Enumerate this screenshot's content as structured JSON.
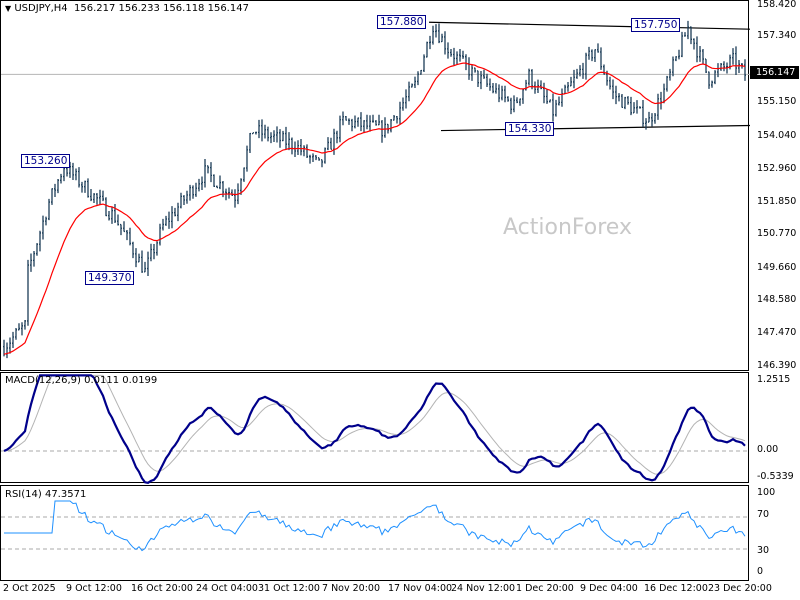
{
  "header": {
    "symbol": "USDJPY,H4",
    "ohlc": "156.217 156.233 156.118 156.147"
  },
  "watermark": "ActionForex",
  "current_price": "156.147",
  "price_axis": [
    "158.420",
    "157.340",
    "156.147",
    "155.150",
    "154.040",
    "152.960",
    "151.850",
    "150.770",
    "149.660",
    "148.580",
    "147.470",
    "146.390"
  ],
  "callouts": {
    "high1": "157.880",
    "high2": "157.750",
    "low1": "154.330",
    "left_high": "153.260",
    "left_low": "149.370"
  },
  "macd": {
    "label": "MACD(12,26,9) 0.0111 0.0199",
    "axis": [
      "1.2515",
      "0.00",
      "-0.5339"
    ]
  },
  "rsi": {
    "label": "RSI(14) 47.3571",
    "axis": [
      "100",
      "70",
      "30",
      "0"
    ]
  },
  "time_axis": [
    "2 Oct 2025",
    "9 Oct 12:00",
    "16 Oct 20:00",
    "24 Oct 04:00",
    "31 Oct 12:00",
    "7 Nov 20:00",
    "17 Nov 04:00",
    "24 Nov 12:00",
    "1 Dec 20:00",
    "9 Dec 04:00",
    "16 Dec 12:00",
    "23 Dec 20:00"
  ],
  "colors": {
    "bars": "#1c3d58",
    "ma": "#ff0000",
    "macd": "#00008b",
    "signal": "#b4b4b4",
    "rsi": "#1e90ff",
    "callout": "#00008b"
  },
  "chart_data": {
    "type": "ohlc",
    "title": "USDJPY,H4",
    "ylim": [
      146.39,
      158.42
    ],
    "path_anchors": [
      [
        0,
        147.1
      ],
      [
        7,
        147.8
      ],
      [
        8,
        149.6
      ],
      [
        15,
        151.9
      ],
      [
        20,
        153.1
      ],
      [
        27,
        152.4
      ],
      [
        37,
        151.4
      ],
      [
        47,
        149.6
      ],
      [
        53,
        151.1
      ],
      [
        67,
        152.9
      ],
      [
        77,
        152.1
      ],
      [
        83,
        154.3
      ],
      [
        97,
        153.8
      ],
      [
        105,
        153.1
      ],
      [
        113,
        154.6
      ],
      [
        127,
        154.3
      ],
      [
        137,
        155.8
      ],
      [
        143,
        157.8
      ],
      [
        148,
        157.0
      ],
      [
        157,
        156.1
      ],
      [
        170,
        155.1
      ],
      [
        175,
        156.1
      ],
      [
        183,
        154.9
      ],
      [
        197,
        157.0
      ],
      [
        203,
        155.5
      ],
      [
        215,
        154.6
      ],
      [
        220,
        155.6
      ],
      [
        228,
        157.7
      ],
      [
        235,
        156.0
      ],
      [
        243,
        156.6
      ],
      [
        247,
        156.15
      ]
    ],
    "trendlines": {
      "resistance": [
        157.88,
        157.65
      ],
      "support": [
        154.28,
        154.45
      ]
    },
    "macd_range": [
      -0.5339,
      1.2515
    ],
    "rsi_levels": [
      70,
      30
    ]
  }
}
